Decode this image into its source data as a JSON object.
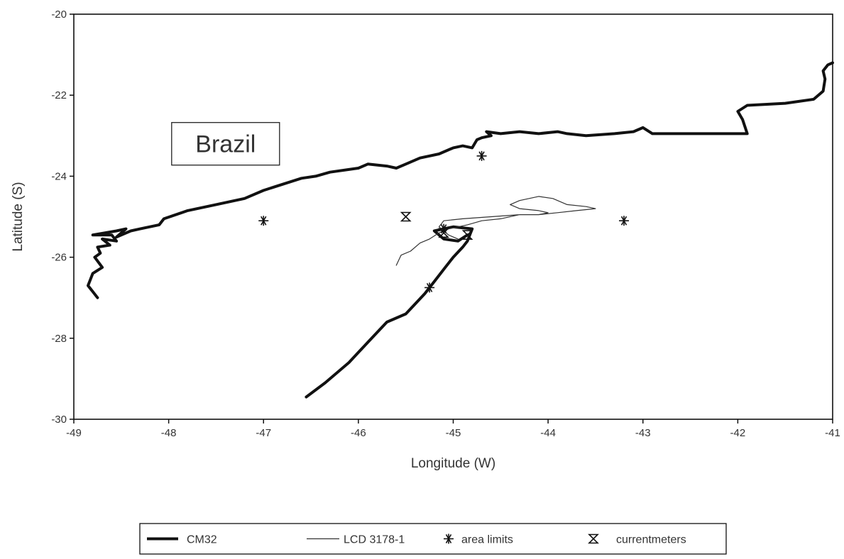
{
  "chart_data": {
    "type": "line",
    "xlabel": "Longitude (W)",
    "ylabel": "Latitude (S)",
    "xlim": [
      -49,
      -41
    ],
    "ylim": [
      -30,
      -20
    ],
    "xticks": [
      -49,
      -48,
      -47,
      -46,
      -45,
      -44,
      -43,
      -42,
      -41
    ],
    "yticks": [
      -30,
      -28,
      -26,
      -24,
      -22,
      -20
    ],
    "grid": false,
    "legend_position": "bottom",
    "annotations": [
      {
        "text": "Brazil",
        "x": -47.4,
        "y": -23.2
      }
    ],
    "series": [
      {
        "name": "CM32",
        "style": "thick-line",
        "color": "#111111",
        "x": [
          -48.75,
          -48.85,
          -48.8,
          -48.7,
          -48.78,
          -48.72,
          -48.75,
          -48.62,
          -48.7,
          -48.55,
          -48.6,
          -48.8,
          -48.55,
          -48.45,
          -48.55,
          -48.4,
          -48.3,
          -48.1,
          -48.05,
          -47.8,
          -47.5,
          -47.2,
          -47.0,
          -46.8,
          -46.6,
          -46.45,
          -46.3,
          -46.0,
          -45.9,
          -45.7,
          -45.6,
          -45.5,
          -45.35,
          -45.15,
          -45.0,
          -44.9,
          -44.8,
          -44.75,
          -44.7,
          -44.6,
          -44.65,
          -44.5,
          -44.3,
          -44.1,
          -43.9,
          -43.8,
          -43.6,
          -43.3,
          -43.1,
          -43.0,
          -42.9,
          -42.8,
          -42.5,
          -42.2,
          -41.9,
          -41.95,
          -42.0,
          -41.9,
          -41.5,
          -41.2,
          -41.1,
          -41.08,
          -41.1,
          -41.05,
          -41.0
        ],
        "y": [
          -27.0,
          -26.7,
          -26.4,
          -26.25,
          -26.0,
          -25.9,
          -25.75,
          -25.7,
          -25.55,
          -25.6,
          -25.45,
          -25.45,
          -25.35,
          -25.3,
          -25.5,
          -25.35,
          -25.3,
          -25.2,
          -25.05,
          -24.85,
          -24.7,
          -24.55,
          -24.35,
          -24.2,
          -24.05,
          -24.0,
          -23.9,
          -23.8,
          -23.7,
          -23.75,
          -23.8,
          -23.7,
          -23.55,
          -23.45,
          -23.3,
          -23.25,
          -23.3,
          -23.1,
          -23.05,
          -23.0,
          -22.9,
          -22.95,
          -22.9,
          -22.95,
          -22.9,
          -22.95,
          -23.0,
          -22.95,
          -22.9,
          -22.8,
          -22.95,
          -22.95,
          -22.95,
          -22.95,
          -22.95,
          -22.6,
          -22.4,
          -22.25,
          -22.2,
          -22.1,
          -21.9,
          -21.6,
          -21.4,
          -21.25,
          -21.2
        ]
      },
      {
        "name": "CM32",
        "style": "thick-line",
        "color": "#111111",
        "x": [
          -46.55,
          -46.35,
          -46.1,
          -45.9,
          -45.7,
          -45.5,
          -45.3,
          -45.2,
          -45.1,
          -45.0,
          -44.9,
          -44.85,
          -44.8,
          -45.0,
          -45.1,
          -45.2,
          -45.1,
          -44.95,
          -44.85
        ],
        "y": [
          -29.45,
          -29.1,
          -28.6,
          -28.1,
          -27.6,
          -27.4,
          -26.9,
          -26.6,
          -26.3,
          -26.0,
          -25.75,
          -25.6,
          -25.3,
          -25.25,
          -25.3,
          -25.35,
          -25.55,
          -25.6,
          -25.45
        ]
      },
      {
        "name": "LCD 3178-1",
        "style": "thin-line",
        "color": "#333333",
        "x": [
          -45.6,
          -45.55,
          -45.45,
          -45.35,
          -45.25,
          -45.15,
          -45.05,
          -44.95,
          -44.85,
          -44.7,
          -44.5,
          -44.3,
          -44.1,
          -43.9,
          -43.7,
          -43.5,
          -43.6,
          -43.8,
          -43.95,
          -44.1,
          -44.3,
          -44.4,
          -44.3,
          -44.1,
          -44.0,
          -44.1,
          -44.3,
          -44.6,
          -44.9,
          -45.1,
          -45.15,
          -45.05,
          -44.95
        ],
        "y": [
          -26.2,
          -25.95,
          -25.85,
          -25.65,
          -25.55,
          -25.4,
          -25.3,
          -25.25,
          -25.2,
          -25.1,
          -25.05,
          -24.95,
          -24.95,
          -24.9,
          -24.85,
          -24.8,
          -24.75,
          -24.7,
          -24.55,
          -24.5,
          -24.6,
          -24.7,
          -24.8,
          -24.85,
          -24.9,
          -24.95,
          -24.95,
          -25.0,
          -25.05,
          -25.1,
          -25.25,
          -25.45,
          -25.55
        ]
      }
    ],
    "points": [
      {
        "name": "area limits",
        "marker": "asterisk",
        "x": [
          -47.0,
          -44.7,
          -43.2,
          -45.25,
          -45.1
        ],
        "y": [
          -25.1,
          -23.5,
          -25.1,
          -26.75,
          -25.3
        ]
      },
      {
        "name": "currentmeters",
        "marker": "hourglass",
        "x": [
          -45.5,
          -45.1,
          -44.85
        ],
        "y": [
          -25.0,
          -25.4,
          -25.45
        ]
      }
    ],
    "legend": [
      {
        "label": "CM32",
        "symbol": "thick-line"
      },
      {
        "label": "LCD 3178-1",
        "symbol": "thin-line"
      },
      {
        "label": "area limits",
        "symbol": "asterisk"
      },
      {
        "label": "currentmeters",
        "symbol": "hourglass"
      }
    ]
  }
}
